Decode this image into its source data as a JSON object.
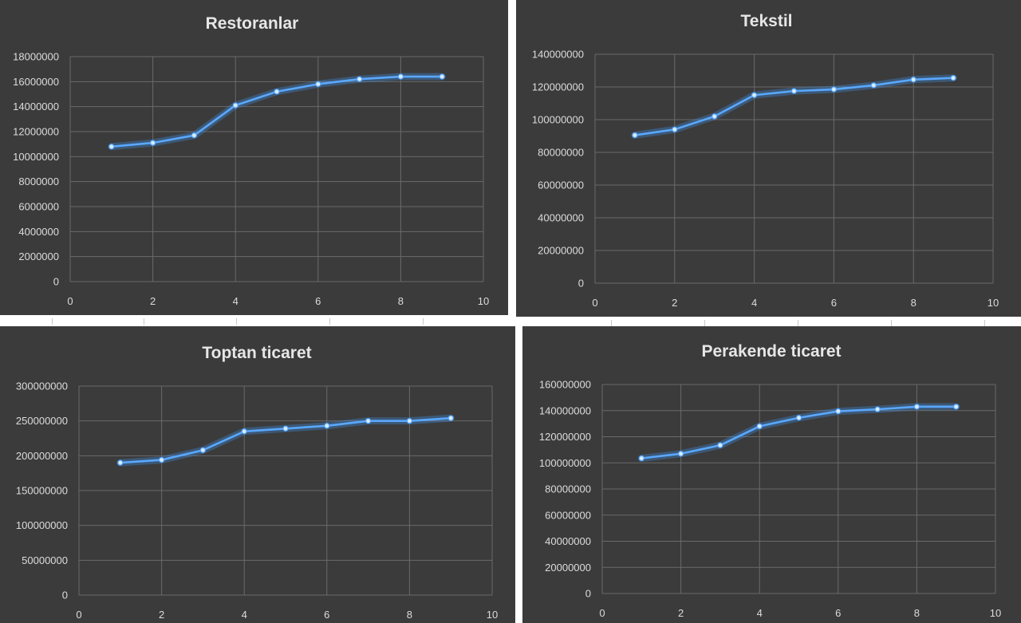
{
  "chart_data": [
    {
      "type": "line",
      "title": "Restoranlar",
      "xlim": [
        0,
        10
      ],
      "xticks": [
        0,
        2,
        4,
        6,
        8,
        10
      ],
      "ylim": [
        0,
        18000000
      ],
      "yticks": [
        0,
        2000000,
        4000000,
        6000000,
        8000000,
        10000000,
        12000000,
        14000000,
        16000000,
        18000000
      ],
      "grid": true,
      "legend": "none",
      "series": [
        {
          "x": [
            1,
            2,
            3,
            4,
            5,
            6,
            7,
            8,
            9
          ],
          "values": [
            10800000,
            11100000,
            11700000,
            14100000,
            15200000,
            15800000,
            16200000,
            16400000,
            16400000
          ]
        }
      ]
    },
    {
      "type": "line",
      "title": "Tekstil",
      "xlim": [
        0,
        10
      ],
      "xticks": [
        0,
        2,
        4,
        6,
        8,
        10
      ],
      "ylim": [
        0,
        140000000
      ],
      "yticks": [
        0,
        20000000,
        40000000,
        60000000,
        80000000,
        100000000,
        120000000,
        140000000
      ],
      "grid": true,
      "legend": "none",
      "series": [
        {
          "x": [
            1,
            2,
            3,
            4,
            5,
            6,
            7,
            8,
            9
          ],
          "values": [
            90500000,
            94000000,
            102000000,
            115000000,
            117500000,
            118500000,
            121000000,
            124500000,
            125500000
          ]
        }
      ]
    },
    {
      "type": "line",
      "title": "Toptan ticaret",
      "xlim": [
        0,
        10
      ],
      "xticks": [
        0,
        2,
        4,
        6,
        8,
        10
      ],
      "ylim": [
        0,
        300000000
      ],
      "yticks": [
        0,
        50000000,
        100000000,
        150000000,
        200000000,
        250000000,
        300000000
      ],
      "grid": true,
      "legend": "none",
      "series": [
        {
          "x": [
            1,
            2,
            3,
            4,
            5,
            6,
            7,
            8,
            9
          ],
          "values": [
            190000000,
            194000000,
            208000000,
            235000000,
            239000000,
            243000000,
            250000000,
            250000000,
            254000000
          ]
        }
      ]
    },
    {
      "type": "line",
      "title": "Perakende ticaret",
      "xlim": [
        0,
        10
      ],
      "xticks": [
        0,
        2,
        4,
        6,
        8,
        10
      ],
      "ylim": [
        0,
        160000000
      ],
      "yticks": [
        0,
        20000000,
        40000000,
        60000000,
        80000000,
        100000000,
        120000000,
        140000000,
        160000000
      ],
      "grid": true,
      "legend": "none",
      "series": [
        {
          "x": [
            1,
            2,
            3,
            4,
            5,
            6,
            7,
            8,
            9
          ],
          "values": [
            103500000,
            107000000,
            113500000,
            128000000,
            134500000,
            139500000,
            141000000,
            143000000,
            143000000
          ]
        }
      ]
    }
  ],
  "colors": {
    "panel_background": "#3b3b3b",
    "gridline": "#6a6a6a",
    "series_line": "#5aa8ff",
    "series_glow": "#3f8fe6",
    "text": "#dcdcdc"
  }
}
